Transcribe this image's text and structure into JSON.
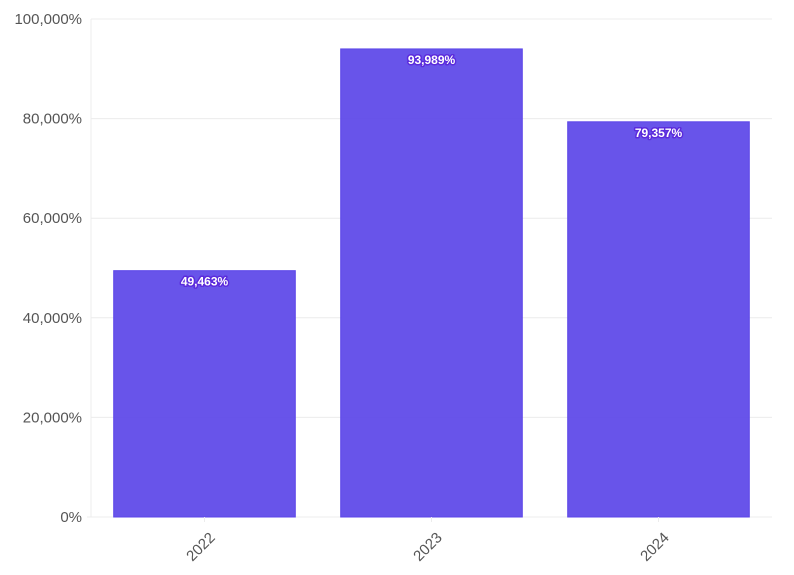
{
  "chart_data": {
    "type": "bar",
    "categories": [
      "2022",
      "2023",
      "2024"
    ],
    "values": [
      49463,
      93989,
      79357
    ],
    "value_labels": [
      "49,463%",
      "93,989%",
      "79,357%"
    ],
    "yticks": [
      0,
      20000,
      40000,
      60000,
      80000,
      100000
    ],
    "ytick_labels": [
      "0%",
      "20,000%",
      "40,000%",
      "60,000%",
      "80,000%",
      "100,000%"
    ],
    "ylim": [
      0,
      100000
    ],
    "title": "",
    "xlabel": "",
    "ylabel": "",
    "grid": true,
    "legend": "none",
    "bar_color": "#5b45e8",
    "label_outline_color": "#5b2bdc",
    "grid_color": "#ececec",
    "axis_label_color": "#555555"
  }
}
